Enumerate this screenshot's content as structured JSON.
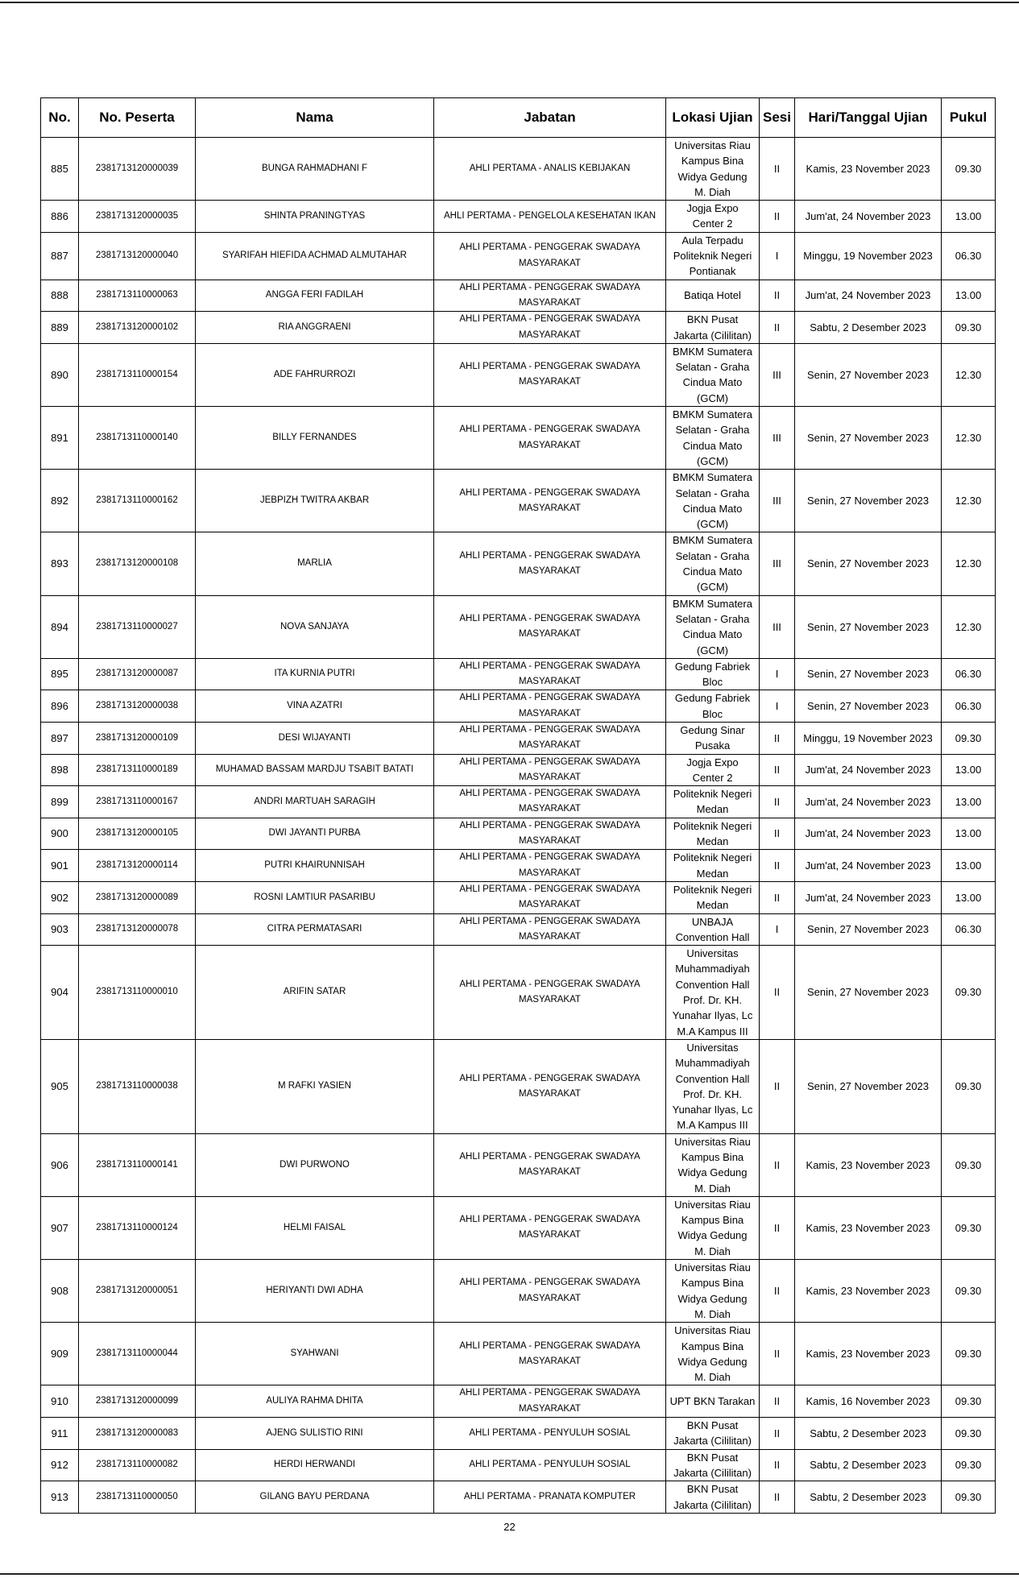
{
  "table": {
    "headers": [
      "No.",
      "No. Peserta",
      "Nama",
      "Jabatan",
      "Lokasi Ujian",
      "Sesi",
      "Hari/Tanggal Ujian",
      "Pukul"
    ],
    "rows": [
      {
        "no": "885",
        "peserta": "2381713120000039",
        "nama": "BUNGA RAHMADHANI F",
        "jabatan": "AHLI PERTAMA - ANALIS KEBIJAKAN",
        "lokasi": "Universitas Riau\nKampus Bina\nWidya Gedung\nM. Diah",
        "sesi": "II",
        "tanggal": "Kamis, 23 November 2023",
        "pukul": "09.30"
      },
      {
        "no": "886",
        "peserta": "2381713120000035",
        "nama": "SHINTA PRANINGTYAS",
        "jabatan": "AHLI PERTAMA - PENGELOLA KESEHATAN IKAN",
        "lokasi": "Jogja Expo\nCenter 2",
        "sesi": "II",
        "tanggal": "Jum'at, 24 November 2023",
        "pukul": "13.00"
      },
      {
        "no": "887",
        "peserta": "2381713120000040",
        "nama": "SYARIFAH HIEFIDA ACHMAD ALMUTAHAR",
        "jabatan": "AHLI PERTAMA - PENGGERAK SWADAYA\nMASYARAKAT",
        "lokasi": "Aula Terpadu\nPoliteknik Negeri\nPontianak",
        "sesi": "I",
        "tanggal": "Minggu, 19 November 2023",
        "pukul": "06.30"
      },
      {
        "no": "888",
        "peserta": "2381713110000063",
        "nama": "ANGGA FERI FADILAH",
        "jabatan": "AHLI PERTAMA - PENGGERAK SWADAYA\nMASYARAKAT",
        "lokasi": "Batiqa Hotel",
        "sesi": "II",
        "tanggal": "Jum'at, 24 November 2023",
        "pukul": "13.00"
      },
      {
        "no": "889",
        "peserta": "2381713120000102",
        "nama": "RIA ANGGRAENI",
        "jabatan": "AHLI PERTAMA - PENGGERAK SWADAYA\nMASYARAKAT",
        "lokasi": "BKN Pusat\nJakarta (Cililitan)",
        "sesi": "II",
        "tanggal": "Sabtu, 2 Desember 2023",
        "pukul": "09.30"
      },
      {
        "no": "890",
        "peserta": "2381713110000154",
        "nama": "ADE FAHRURROZI",
        "jabatan": "AHLI PERTAMA - PENGGERAK SWADAYA\nMASYARAKAT",
        "lokasi": "BMKM Sumatera\nSelatan - Graha\nCindua Mato\n(GCM)",
        "sesi": "III",
        "tanggal": "Senin, 27 November 2023",
        "pukul": "12.30"
      },
      {
        "no": "891",
        "peserta": "2381713110000140",
        "nama": "BILLY FERNANDES",
        "jabatan": "AHLI PERTAMA - PENGGERAK SWADAYA\nMASYARAKAT",
        "lokasi": "BMKM Sumatera\nSelatan - Graha\nCindua Mato\n(GCM)",
        "sesi": "III",
        "tanggal": "Senin, 27 November 2023",
        "pukul": "12.30"
      },
      {
        "no": "892",
        "peserta": "2381713110000162",
        "nama": "JEBPIZH TWITRA AKBAR",
        "jabatan": "AHLI PERTAMA - PENGGERAK SWADAYA\nMASYARAKAT",
        "lokasi": "BMKM Sumatera\nSelatan - Graha\nCindua Mato\n(GCM)",
        "sesi": "III",
        "tanggal": "Senin, 27 November 2023",
        "pukul": "12.30"
      },
      {
        "no": "893",
        "peserta": "2381713120000108",
        "nama": "MARLIA",
        "jabatan": "AHLI PERTAMA - PENGGERAK SWADAYA\nMASYARAKAT",
        "lokasi": "BMKM Sumatera\nSelatan - Graha\nCindua Mato\n(GCM)",
        "sesi": "III",
        "tanggal": "Senin, 27 November 2023",
        "pukul": "12.30"
      },
      {
        "no": "894",
        "peserta": "2381713110000027",
        "nama": "NOVA SANJAYA",
        "jabatan": "AHLI PERTAMA - PENGGERAK SWADAYA\nMASYARAKAT",
        "lokasi": "BMKM Sumatera\nSelatan - Graha\nCindua Mato\n(GCM)",
        "sesi": "III",
        "tanggal": "Senin, 27 November 2023",
        "pukul": "12.30"
      },
      {
        "no": "895",
        "peserta": "2381713120000087",
        "nama": "ITA KURNIA PUTRI",
        "jabatan": "AHLI PERTAMA - PENGGERAK SWADAYA\nMASYARAKAT",
        "lokasi": "Gedung Fabriek\nBloc",
        "sesi": "I",
        "tanggal": "Senin, 27 November 2023",
        "pukul": "06.30"
      },
      {
        "no": "896",
        "peserta": "2381713120000038",
        "nama": "VINA AZATRI",
        "jabatan": "AHLI PERTAMA - PENGGERAK SWADAYA\nMASYARAKAT",
        "lokasi": "Gedung Fabriek\nBloc",
        "sesi": "I",
        "tanggal": "Senin, 27 November 2023",
        "pukul": "06.30"
      },
      {
        "no": "897",
        "peserta": "2381713120000109",
        "nama": "DESI WIJAYANTI",
        "jabatan": "AHLI PERTAMA - PENGGERAK SWADAYA\nMASYARAKAT",
        "lokasi": "Gedung Sinar\nPusaka",
        "sesi": "II",
        "tanggal": "Minggu, 19 November 2023",
        "pukul": "09.30"
      },
      {
        "no": "898",
        "peserta": "2381713110000189",
        "nama": "MUHAMAD BASSAM MARDJU TSABIT BATATI",
        "jabatan": "AHLI PERTAMA - PENGGERAK SWADAYA\nMASYARAKAT",
        "lokasi": "Jogja Expo\nCenter 2",
        "sesi": "II",
        "tanggal": "Jum'at, 24 November 2023",
        "pukul": "13.00"
      },
      {
        "no": "899",
        "peserta": "2381713110000167",
        "nama": "ANDRI MARTUAH SARAGIH",
        "jabatan": "AHLI PERTAMA - PENGGERAK SWADAYA\nMASYARAKAT",
        "lokasi": "Politeknik Negeri\nMedan",
        "sesi": "II",
        "tanggal": "Jum'at, 24 November 2023",
        "pukul": "13.00"
      },
      {
        "no": "900",
        "peserta": "2381713120000105",
        "nama": "DWI JAYANTI PURBA",
        "jabatan": "AHLI PERTAMA - PENGGERAK SWADAYA\nMASYARAKAT",
        "lokasi": "Politeknik Negeri\nMedan",
        "sesi": "II",
        "tanggal": "Jum'at, 24 November 2023",
        "pukul": "13.00"
      },
      {
        "no": "901",
        "peserta": "2381713120000114",
        "nama": "PUTRI KHAIRUNNISAH",
        "jabatan": "AHLI PERTAMA - PENGGERAK SWADAYA\nMASYARAKAT",
        "lokasi": "Politeknik Negeri\nMedan",
        "sesi": "II",
        "tanggal": "Jum'at, 24 November 2023",
        "pukul": "13.00"
      },
      {
        "no": "902",
        "peserta": "2381713120000089",
        "nama": "ROSNI LAMTIUR PASARIBU",
        "jabatan": "AHLI PERTAMA - PENGGERAK SWADAYA\nMASYARAKAT",
        "lokasi": "Politeknik Negeri\nMedan",
        "sesi": "II",
        "tanggal": "Jum'at, 24 November 2023",
        "pukul": "13.00"
      },
      {
        "no": "903",
        "peserta": "2381713120000078",
        "nama": "CITRA PERMATASARI",
        "jabatan": "AHLI PERTAMA - PENGGERAK SWADAYA\nMASYARAKAT",
        "lokasi": "UNBAJA\nConvention Hall",
        "sesi": "I",
        "tanggal": "Senin, 27 November 2023",
        "pukul": "06.30"
      },
      {
        "no": "904",
        "peserta": "2381713110000010",
        "nama": "ARIFIN SATAR",
        "jabatan": "AHLI PERTAMA - PENGGERAK SWADAYA\nMASYARAKAT",
        "lokasi": "Universitas\nMuhammadiyah\nConvention Hall\nProf. Dr. KH.\nYunahar Ilyas, Lc\nM.A Kampus III",
        "sesi": "II",
        "tanggal": "Senin, 27 November 2023",
        "pukul": "09.30"
      },
      {
        "no": "905",
        "peserta": "2381713110000038",
        "nama": "M RAFKI YASIEN",
        "jabatan": "AHLI PERTAMA - PENGGERAK SWADAYA\nMASYARAKAT",
        "lokasi": "Universitas\nMuhammadiyah\nConvention Hall\nProf. Dr. KH.\nYunahar Ilyas, Lc\nM.A Kampus III",
        "sesi": "II",
        "tanggal": "Senin, 27 November 2023",
        "pukul": "09.30"
      },
      {
        "no": "906",
        "peserta": "2381713110000141",
        "nama": "DWI PURWONO",
        "jabatan": "AHLI PERTAMA - PENGGERAK SWADAYA\nMASYARAKAT",
        "lokasi": "Universitas Riau\nKampus Bina\nWidya Gedung\nM. Diah",
        "sesi": "II",
        "tanggal": "Kamis, 23 November 2023",
        "pukul": "09.30"
      },
      {
        "no": "907",
        "peserta": "2381713110000124",
        "nama": "HELMI FAISAL",
        "jabatan": "AHLI PERTAMA - PENGGERAK SWADAYA\nMASYARAKAT",
        "lokasi": "Universitas Riau\nKampus Bina\nWidya Gedung\nM. Diah",
        "sesi": "II",
        "tanggal": "Kamis, 23 November 2023",
        "pukul": "09.30"
      },
      {
        "no": "908",
        "peserta": "2381713120000051",
        "nama": "HERIYANTI DWI ADHA",
        "jabatan": "AHLI PERTAMA - PENGGERAK SWADAYA\nMASYARAKAT",
        "lokasi": "Universitas Riau\nKampus Bina\nWidya Gedung\nM. Diah",
        "sesi": "II",
        "tanggal": "Kamis, 23 November 2023",
        "pukul": "09.30"
      },
      {
        "no": "909",
        "peserta": "2381713110000044",
        "nama": "SYAHWANI",
        "jabatan": "AHLI PERTAMA - PENGGERAK SWADAYA\nMASYARAKAT",
        "lokasi": "Universitas Riau\nKampus Bina\nWidya Gedung\nM. Diah",
        "sesi": "II",
        "tanggal": "Kamis, 23 November 2023",
        "pukul": "09.30"
      },
      {
        "no": "910",
        "peserta": "2381713120000099",
        "nama": "AULIYA RAHMA DHITA",
        "jabatan": "AHLI PERTAMA - PENGGERAK SWADAYA\nMASYARAKAT",
        "lokasi": "UPT BKN Tarakan",
        "sesi": "II",
        "tanggal": "Kamis, 16 November 2023",
        "pukul": "09.30"
      },
      {
        "no": "911",
        "peserta": "2381713120000083",
        "nama": "AJENG SULISTIO RINI",
        "jabatan": "AHLI PERTAMA - PENYULUH SOSIAL",
        "lokasi": "BKN Pusat\nJakarta (Cililitan)",
        "sesi": "II",
        "tanggal": "Sabtu, 2 Desember 2023",
        "pukul": "09.30"
      },
      {
        "no": "912",
        "peserta": "2381713110000082",
        "nama": "HERDI HERWANDI",
        "jabatan": "AHLI PERTAMA - PENYULUH SOSIAL",
        "lokasi": "BKN Pusat\nJakarta (Cililitan)",
        "sesi": "II",
        "tanggal": "Sabtu, 2 Desember 2023",
        "pukul": "09.30"
      },
      {
        "no": "913",
        "peserta": "2381713110000050",
        "nama": "GILANG BAYU PERDANA",
        "jabatan": "AHLI PERTAMA - PRANATA KOMPUTER",
        "lokasi": "BKN Pusat\nJakarta (Cililitan)",
        "sesi": "II",
        "tanggal": "Sabtu, 2 Desember 2023",
        "pukul": "09.30"
      }
    ]
  },
  "page_number": "22"
}
